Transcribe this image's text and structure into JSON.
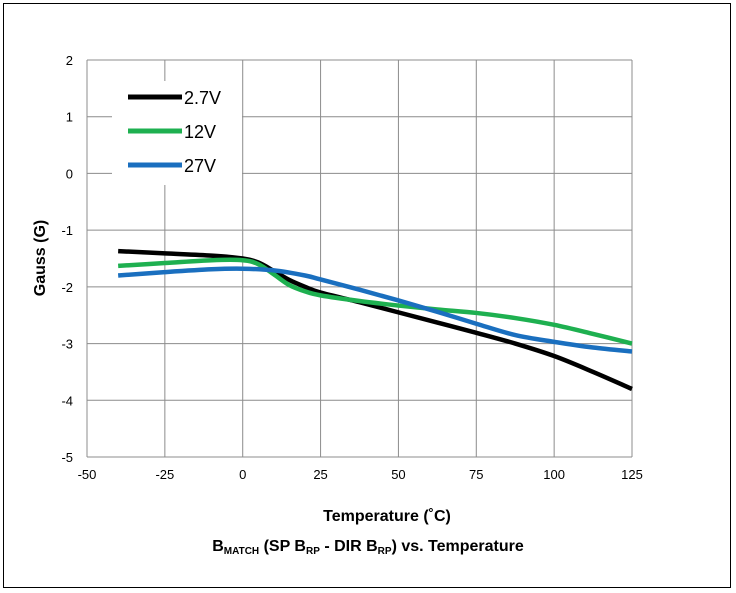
{
  "chart_data": {
    "type": "line",
    "title": "",
    "xlabel": "Temperature (˚C)",
    "ylabel": "Gauss (G)",
    "xlim": [
      -50,
      125
    ],
    "ylim": [
      -5,
      2
    ],
    "xticks": [
      "-50",
      "-25",
      "0",
      "25",
      "50",
      "75",
      "100",
      "125"
    ],
    "yticks": [
      "2",
      "1",
      "0",
      "-1",
      "-2",
      "-3",
      "-4",
      "-5"
    ],
    "grid": true,
    "legend_position": "top-left",
    "series": [
      {
        "name": "2.7V",
        "color": "#000000",
        "x": [
          -40,
          -25,
          -10,
          0,
          5,
          10,
          15,
          20,
          25,
          37.5,
          50,
          62.5,
          75,
          87.5,
          100,
          112.5,
          125
        ],
        "y": [
          -1.37,
          -1.41,
          -1.45,
          -1.5,
          -1.57,
          -1.72,
          -1.88,
          -2.0,
          -2.1,
          -2.27,
          -2.45,
          -2.63,
          -2.81,
          -3.0,
          -3.22,
          -3.5,
          -3.8
        ]
      },
      {
        "name": "12V",
        "color": "#1eb050",
        "x": [
          -40,
          -25,
          -10,
          0,
          5,
          10,
          15,
          20,
          25,
          37.5,
          50,
          62.5,
          75,
          87.5,
          100,
          112.5,
          125
        ],
        "y": [
          -1.63,
          -1.58,
          -1.53,
          -1.53,
          -1.6,
          -1.78,
          -1.97,
          -2.08,
          -2.15,
          -2.25,
          -2.33,
          -2.4,
          -2.46,
          -2.55,
          -2.67,
          -2.83,
          -3.0
        ]
      },
      {
        "name": "27V",
        "color": "#1a6fbf",
        "x": [
          -40,
          -25,
          -10,
          0,
          10,
          20,
          25,
          37.5,
          50,
          62.5,
          75,
          87.5,
          100,
          112.5,
          125
        ],
        "y": [
          -1.8,
          -1.74,
          -1.69,
          -1.68,
          -1.71,
          -1.8,
          -1.87,
          -2.05,
          -2.24,
          -2.44,
          -2.65,
          -2.85,
          -2.97,
          -3.07,
          -3.14
        ]
      }
    ],
    "caption": {
      "b": "B",
      "sub1": "MATCH",
      "mid1": " (SP B",
      "sub2": "RP",
      "mid2": " - DIR B",
      "sub3": "RP",
      "end": ") vs. Temperature"
    }
  }
}
